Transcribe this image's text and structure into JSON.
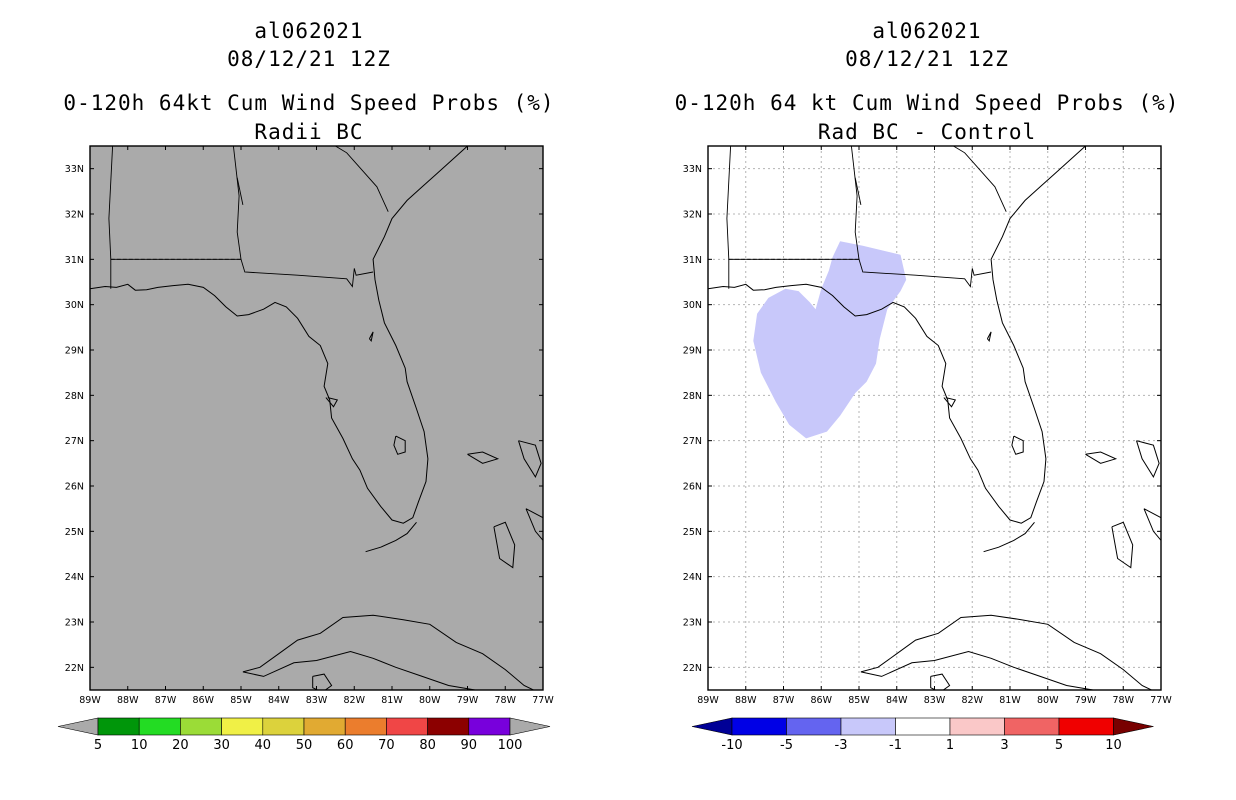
{
  "left_panel": {
    "title_line1": "al062021",
    "title_line2": "08/12/21 12Z",
    "title_line3": "0-120h 64kt Cum Wind Speed Probs (%)",
    "title_line4": "Radii BC",
    "background_color": "#aaaaaa",
    "colorbar": {
      "left_arrow_color": "#aaaaaa",
      "right_arrow_color": "#aaaaaa",
      "colors": [
        "#00960a",
        "#23dc23",
        "#9bdc37",
        "#f0f046",
        "#dcd23c",
        "#e1aa32",
        "#eb7d2d",
        "#f04646",
        "#8c0000",
        "#7800dc"
      ],
      "labels": [
        "5",
        "10",
        "20",
        "30",
        "40",
        "50",
        "60",
        "70",
        "80",
        "90",
        "100"
      ]
    }
  },
  "right_panel": {
    "title_line1": "al062021",
    "title_line2": "08/12/21 12Z",
    "title_line3": "0-120h 64 kt Cum Wind Speed Probs (%)",
    "title_line4": "Rad BC - Control",
    "background_color": "#ffffff",
    "shaded_region_color": "#c8c8fa",
    "shaded_region_value_range": [
      -3,
      -1
    ],
    "colorbar": {
      "left_arrow_color": "#000096",
      "right_arrow_color": "#780000",
      "colors": [
        "#0000e6",
        "#6464f0",
        "#c8c8fa",
        "#ffffff",
        "#fac8c8",
        "#f06464",
        "#f00000"
      ],
      "labels": [
        "-10",
        "-5",
        "-3",
        "-1",
        "1",
        "3",
        "5",
        "10"
      ]
    }
  },
  "axes": {
    "lat_labels": [
      "33N",
      "32N",
      "31N",
      "30N",
      "29N",
      "28N",
      "27N",
      "26N",
      "25N",
      "24N",
      "23N",
      "22N"
    ],
    "lon_labels": [
      "89W",
      "88W",
      "87W",
      "86W",
      "85W",
      "84W",
      "83W",
      "82W",
      "81W",
      "80W",
      "79W",
      "78W",
      "77W"
    ]
  }
}
